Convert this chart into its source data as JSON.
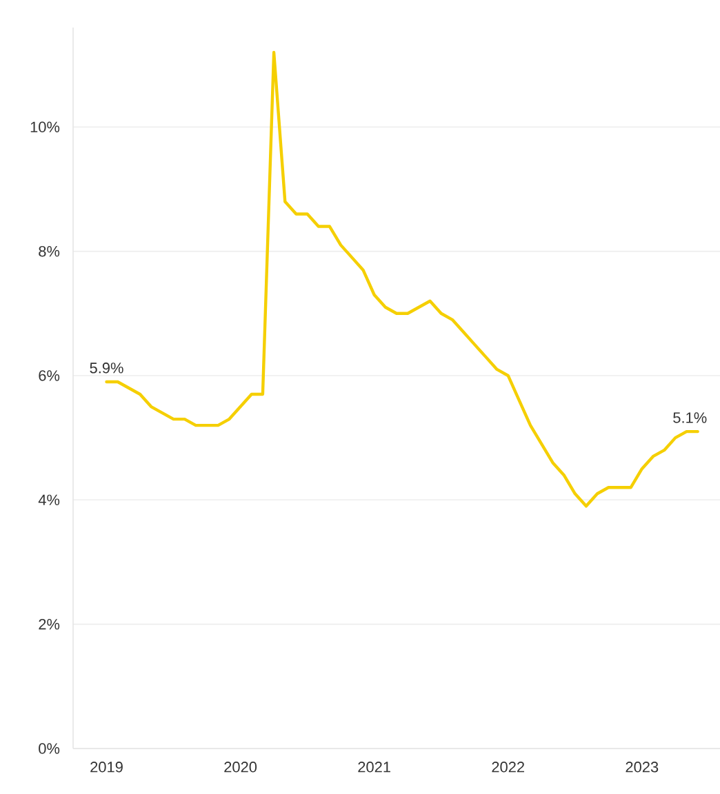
{
  "chart_data": {
    "type": "line",
    "x": [
      "2019-01",
      "2019-02",
      "2019-03",
      "2019-04",
      "2019-05",
      "2019-06",
      "2019-07",
      "2019-08",
      "2019-09",
      "2019-10",
      "2019-11",
      "2019-12",
      "2020-01",
      "2020-02",
      "2020-03",
      "2020-04",
      "2020-05",
      "2020-06",
      "2020-07",
      "2020-08",
      "2020-09",
      "2020-10",
      "2020-11",
      "2020-12",
      "2021-01",
      "2021-02",
      "2021-03",
      "2021-04",
      "2021-05",
      "2021-06",
      "2021-07",
      "2021-08",
      "2021-09",
      "2021-10",
      "2021-11",
      "2021-12",
      "2022-01",
      "2022-02",
      "2022-03",
      "2022-04",
      "2022-05",
      "2022-06",
      "2022-07",
      "2022-08",
      "2022-09",
      "2022-10",
      "2022-11",
      "2022-12",
      "2023-01",
      "2023-02",
      "2023-03",
      "2023-04",
      "2023-05",
      "2023-06"
    ],
    "values": [
      5.9,
      5.9,
      5.8,
      5.7,
      5.5,
      5.4,
      5.3,
      5.3,
      5.2,
      5.2,
      5.2,
      5.3,
      5.5,
      5.7,
      5.7,
      11.2,
      8.8,
      8.6,
      8.6,
      8.4,
      8.4,
      8.1,
      7.9,
      7.7,
      7.3,
      7.1,
      7.0,
      7.0,
      7.1,
      7.2,
      7.0,
      6.9,
      6.7,
      6.5,
      6.3,
      6.1,
      6.0,
      5.6,
      5.2,
      4.9,
      4.6,
      4.4,
      4.1,
      3.9,
      4.1,
      4.2,
      4.2,
      4.2,
      4.5,
      4.7,
      4.8,
      5.0,
      5.1,
      5.1
    ],
    "value_labels": [
      "5.9%",
      null,
      null,
      null,
      null,
      null,
      null,
      null,
      null,
      null,
      null,
      null,
      null,
      null,
      null,
      null,
      null,
      null,
      null,
      null,
      null,
      null,
      null,
      null,
      null,
      null,
      null,
      null,
      null,
      null,
      null,
      null,
      null,
      null,
      null,
      null,
      null,
      null,
      null,
      null,
      null,
      null,
      null,
      null,
      null,
      null,
      null,
      null,
      null,
      null,
      null,
      null,
      null,
      "5.1%"
    ],
    "color": "#f5cf00",
    "xlim": [
      "2018-10",
      "2023-08"
    ],
    "xticks": [
      "2019",
      "2020",
      "2021",
      "2022",
      "2023"
    ],
    "ylim": [
      0,
      11.6
    ],
    "yticks": [
      {
        "value": 0,
        "label": "0%"
      },
      {
        "value": 2,
        "label": "2%"
      },
      {
        "value": 4,
        "label": "4%"
      },
      {
        "value": 6,
        "label": "6%"
      },
      {
        "value": 8,
        "label": "8%"
      },
      {
        "value": 10,
        "label": "10%"
      }
    ],
    "grid": "y",
    "marker": "none",
    "line_style": "solid"
  }
}
